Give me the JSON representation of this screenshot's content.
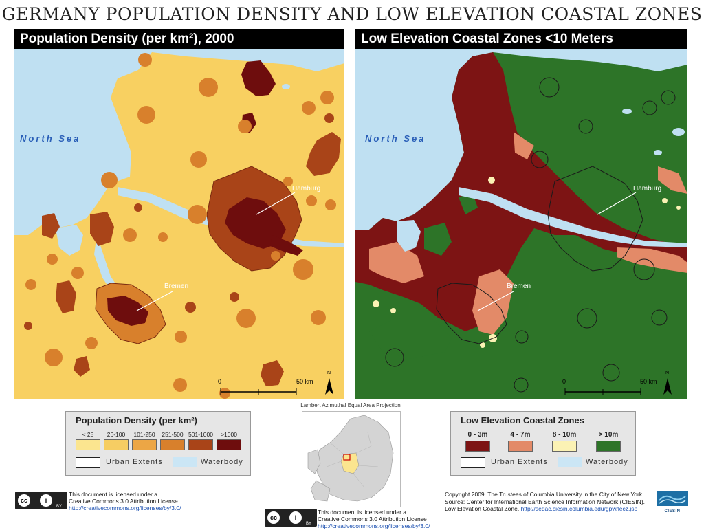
{
  "title": "GERMANY POPULATION DENSITY AND LOW ELEVATION COASTAL ZONES",
  "left_map": {
    "header": "Population Density (per km²), 2000",
    "sea_label": "North Sea",
    "cities": [
      "Hamburg",
      "Bremen"
    ],
    "scale_start": "0",
    "scale_end": "50 km",
    "north": "N"
  },
  "right_map": {
    "header": "Low Elevation Coastal Zones <10 Meters",
    "sea_label": "North Sea",
    "cities": [
      "Hamburg",
      "Bremen"
    ],
    "scale_start": "0",
    "scale_end": "50 km",
    "north": "N"
  },
  "projection": "Lambert Azimuthal Equal Area Projection",
  "legend_population": {
    "title": "Population Density (per km²)",
    "classes": [
      {
        "label": "< 25",
        "color": "#fbe58f"
      },
      {
        "label": "26-100",
        "color": "#f6cd63"
      },
      {
        "label": "101-250",
        "color": "#eca645"
      },
      {
        "label": "251-500",
        "color": "#d8802c"
      },
      {
        "label": "501-1000",
        "color": "#a94418"
      },
      {
        "label": ">1000",
        "color": "#6e0d0d"
      }
    ],
    "urban": "Urban Extents",
    "water": "Waterbody"
  },
  "legend_lecz": {
    "title": "Low Elevation Coastal Zones",
    "classes": [
      {
        "label": "0 - 3m",
        "color": "#7d1414"
      },
      {
        "label": "4 - 7m",
        "color": "#e38a68"
      },
      {
        "label": "8 - 10m",
        "color": "#fbf2b4"
      },
      {
        "label": "> 10m",
        "color": "#2d7428"
      }
    ],
    "urban": "Urban Extents",
    "water": "Waterbody"
  },
  "license_left": {
    "line1": "This document is licensed under a",
    "line2": "Creative Commons 3.0 Attribution License",
    "url": "http://creativecommons.org/licenses/by/3.0/",
    "badge": "BY"
  },
  "license_center": {
    "line1": "This document is licensed under a",
    "line2": "Creative Commons 3.0 Attribution License",
    "url": "http://creativecommons.org/licenses/by/3.0/",
    "badge": "BY"
  },
  "copyright": {
    "line1": "Copyright 2009. The Trustees of Columbia University in the City of New York.",
    "line2": "Source: Center for International Earth Science Information Network (CIESIN).",
    "line3_text": "Low Elevation Coastal Zone.",
    "line3_link": "http://sedac.ciesin.columbia.edu/gpw/lecz.jsp"
  },
  "ciesin_logo": "CIESIN",
  "colors": {
    "water": "#bfe0f2",
    "pop_base": "#f8d061",
    "lecz_high": "#2d7428",
    "lecz_low": "#7d1414"
  }
}
